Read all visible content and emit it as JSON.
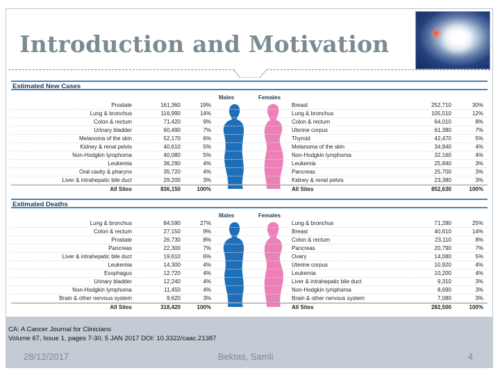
{
  "slide": {
    "title": "Introduction and Motivation",
    "accent_color": "#7c8a92",
    "image_icon": "medical-image-icon"
  },
  "figure": {
    "new_cases": {
      "heading": "Estimated New Cases",
      "males_label": "Males",
      "females_label": "Females",
      "males": [
        [
          "Prostate",
          "161,360",
          "19%"
        ],
        [
          "Lung & bronchus",
          "116,990",
          "14%"
        ],
        [
          "Colon & rectum",
          "71,420",
          "9%"
        ],
        [
          "Urinary bladder",
          "60,490",
          "7%"
        ],
        [
          "Melanoma of the skin",
          "52,170",
          "6%"
        ],
        [
          "Kidney & renal pelvis",
          "40,610",
          "5%"
        ],
        [
          "Non-Hodgkin lymphoma",
          "40,080",
          "5%"
        ],
        [
          "Leukemia",
          "36,290",
          "4%"
        ],
        [
          "Oral cavity & pharynx",
          "35,720",
          "4%"
        ],
        [
          "Liver & intrahepatic bile duct",
          "29,200",
          "3%"
        ]
      ],
      "males_total": [
        "All Sites",
        "836,150",
        "100%"
      ],
      "females": [
        [
          "Breast",
          "252,710",
          "30%"
        ],
        [
          "Lung & bronchus",
          "105,510",
          "12%"
        ],
        [
          "Colon & rectum",
          "64,010",
          "8%"
        ],
        [
          "Uterine corpus",
          "61,380",
          "7%"
        ],
        [
          "Thyroid",
          "42,470",
          "5%"
        ],
        [
          "Melanoma of the skin",
          "34,940",
          "4%"
        ],
        [
          "Non-Hodgkin lymphoma",
          "32,160",
          "4%"
        ],
        [
          "Leukemia",
          "25,840",
          "3%"
        ],
        [
          "Pancreas",
          "25,700",
          "3%"
        ],
        [
          "Kidney & renal pelvis",
          "23,380",
          "3%"
        ]
      ],
      "females_total": [
        "All Sites",
        "852,630",
        "100%"
      ]
    },
    "deaths": {
      "heading": "Estimated Deaths",
      "males_label": "Males",
      "females_label": "Females",
      "males": [
        [
          "Lung & bronchus",
          "84,590",
          "27%"
        ],
        [
          "Colon & rectum",
          "27,150",
          "9%"
        ],
        [
          "Prostate",
          "26,730",
          "8%"
        ],
        [
          "Pancreas",
          "22,300",
          "7%"
        ],
        [
          "Liver & intrahepatic bile duct",
          "19,610",
          "6%"
        ],
        [
          "Leukemia",
          "14,300",
          "4%"
        ],
        [
          "Esophagus",
          "12,720",
          "4%"
        ],
        [
          "Urinary bladder",
          "12,240",
          "4%"
        ],
        [
          "Non-Hodgkin lymphoma",
          "11,450",
          "4%"
        ],
        [
          "Brain & other nervous system",
          "9,620",
          "3%"
        ]
      ],
      "males_total": [
        "All Sites",
        "318,420",
        "100%"
      ],
      "females": [
        [
          "Lung & bronchus",
          "71,280",
          "25%"
        ],
        [
          "Breast",
          "40,610",
          "14%"
        ],
        [
          "Colon & rectum",
          "23,110",
          "8%"
        ],
        [
          "Pancreas",
          "20,790",
          "7%"
        ],
        [
          "Ovary",
          "14,080",
          "5%"
        ],
        [
          "Uterine corpus",
          "10,920",
          "4%"
        ],
        [
          "Leukemia",
          "10,200",
          "4%"
        ],
        [
          "Liver & intrahepatic bile duct",
          "9,310",
          "3%"
        ],
        [
          "Non-Hodgkin lymphoma",
          "8,690",
          "3%"
        ],
        [
          "Brain & other nervous system",
          "7,080",
          "3%"
        ]
      ],
      "females_total": [
        "All Sites",
        "282,500",
        "100%"
      ]
    },
    "colors": {
      "male": "#1f6fb8",
      "female": "#ec7fb6",
      "rule": "#4a7fb0"
    }
  },
  "citation": {
    "line1": "CA: A Cancer Journal for Clinicians",
    "line2": "Volume 67, Issue 1, pages 7-30, 5 JAN 2017 DOI: 10.3322/caac.21387"
  },
  "footer": {
    "date": "28/12/2017",
    "author": "Bektas, Samli",
    "page": "4"
  }
}
